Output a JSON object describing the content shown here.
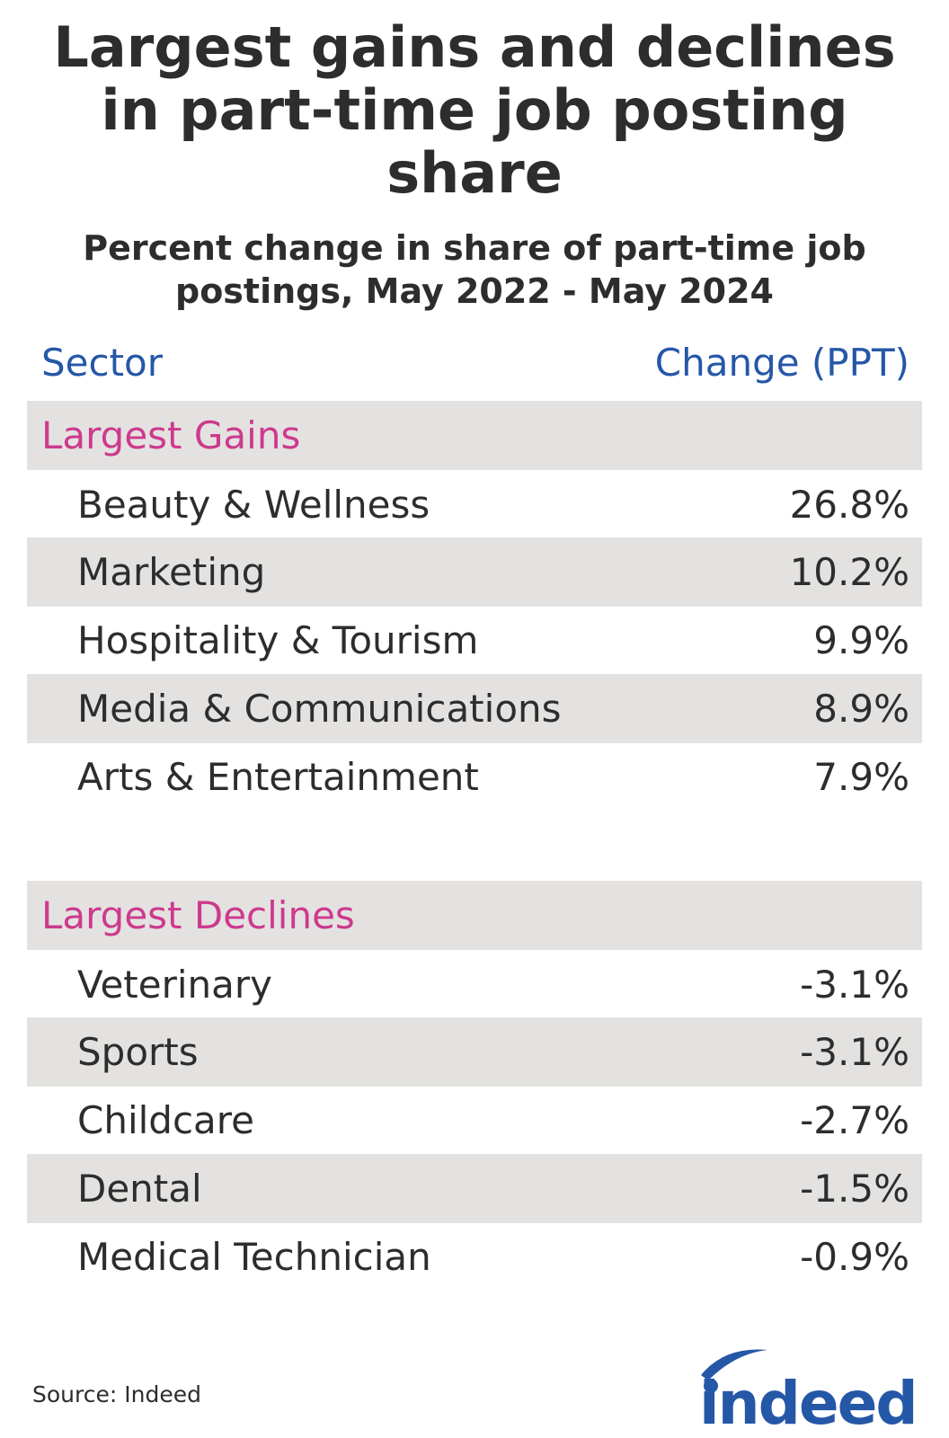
{
  "chart_data": {
    "type": "table",
    "title": "Largest gains and declines in part-time job posting share",
    "subtitle": "Percent change in share of part-time job postings, May 2022 - May 2024",
    "columns": [
      "Sector",
      "Change (PPT)"
    ],
    "groups": [
      {
        "name": "Largest Gains",
        "rows": [
          {
            "sector": "Beauty & Wellness",
            "change": "26.8%",
            "value": 26.8
          },
          {
            "sector": "Marketing",
            "change": "10.2%",
            "value": 10.2
          },
          {
            "sector": "Hospitality & Tourism",
            "change": "9.9%",
            "value": 9.9
          },
          {
            "sector": "Media & Communications",
            "change": "8.9%",
            "value": 8.9
          },
          {
            "sector": "Arts & Entertainment",
            "change": "7.9%",
            "value": 7.9
          }
        ]
      },
      {
        "name": "Largest Declines",
        "rows": [
          {
            "sector": "Veterinary",
            "change": "-3.1%",
            "value": -3.1
          },
          {
            "sector": "Sports",
            "change": "-3.1%",
            "value": -3.1
          },
          {
            "sector": "Childcare",
            "change": "-2.7%",
            "value": -2.7
          },
          {
            "sector": "Dental",
            "change": "-1.5%",
            "value": -1.5
          },
          {
            "sector": "Medical Technician",
            "change": "-0.9%",
            "value": -0.9
          }
        ]
      }
    ]
  },
  "source": "Source: Indeed",
  "logo": "indeed",
  "colors": {
    "header_blue": "#2557a7",
    "group_pink": "#cd3a8e",
    "row_shade": "#e4e2e0",
    "text": "#2d2d2d"
  }
}
